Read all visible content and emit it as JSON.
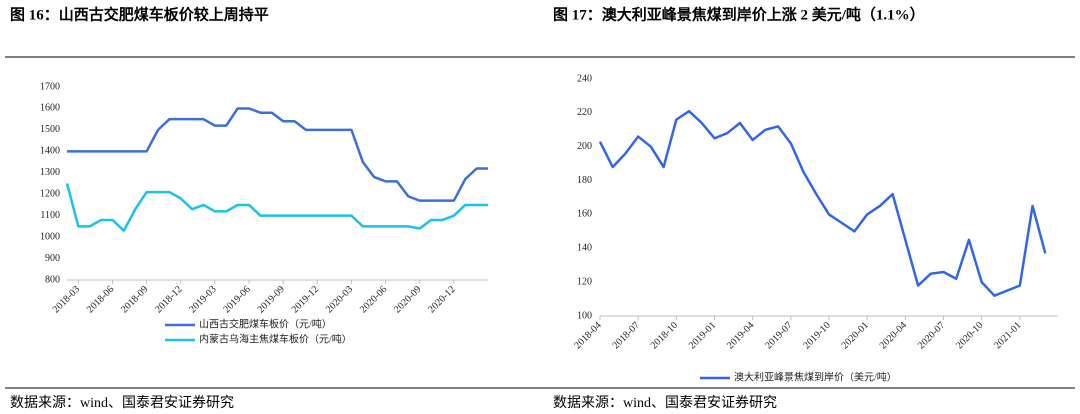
{
  "chart_data": [
    {
      "type": "line",
      "title": "图 16：山西古交肥煤车板价较上周持平",
      "source": "数据来源：wind、国泰君安证券研究",
      "x": [
        "2018-02",
        "2018-03",
        "2018-04",
        "2018-05",
        "2018-06",
        "2018-07",
        "2018-08",
        "2018-09",
        "2018-10",
        "2018-11",
        "2018-12",
        "2019-01",
        "2019-02",
        "2019-03",
        "2019-04",
        "2019-05",
        "2019-06",
        "2019-07",
        "2019-08",
        "2019-09",
        "2019-10",
        "2019-11",
        "2019-12",
        "2020-01",
        "2020-02",
        "2020-03",
        "2020-04",
        "2020-05",
        "2020-06",
        "2020-07",
        "2020-08",
        "2020-09",
        "2020-10",
        "2020-11",
        "2020-12",
        "2021-01",
        "2021-02",
        "2021-03"
      ],
      "xlim": [
        "2018-02",
        "2021-03"
      ],
      "xticks": [
        "2018-03",
        "2018-06",
        "2018-09",
        "2018-12",
        "2019-03",
        "2019-06",
        "2019-09",
        "2019-12",
        "2020-03",
        "2020-06",
        "2020-09",
        "2020-12"
      ],
      "ylim": [
        800,
        1700
      ],
      "yticks": [
        800,
        900,
        1000,
        1100,
        1200,
        1300,
        1400,
        1500,
        1600,
        1700
      ],
      "legend": "bottom",
      "series": [
        {
          "name": "山西古交肥煤车板价（元/吨）",
          "color": "#3b6fd9",
          "values": [
            1400,
            1400,
            1400,
            1400,
            1400,
            1400,
            1400,
            1400,
            1500,
            1550,
            1550,
            1550,
            1550,
            1520,
            1520,
            1600,
            1600,
            1580,
            1580,
            1540,
            1540,
            1500,
            1500,
            1500,
            1500,
            1500,
            1350,
            1280,
            1260,
            1260,
            1190,
            1170,
            1170,
            1170,
            1170,
            1270,
            1320,
            1320
          ]
        },
        {
          "name": "内蒙古乌海主焦煤车板价（元/吨）",
          "color": "#19c3e8",
          "values": [
            1250,
            1050,
            1050,
            1080,
            1080,
            1030,
            1130,
            1210,
            1210,
            1210,
            1180,
            1130,
            1150,
            1120,
            1120,
            1150,
            1150,
            1100,
            1100,
            1100,
            1100,
            1100,
            1100,
            1100,
            1100,
            1100,
            1050,
            1050,
            1050,
            1050,
            1050,
            1040,
            1080,
            1080,
            1100,
            1150,
            1150,
            1150
          ]
        }
      ]
    },
    {
      "type": "line",
      "title": "图 17：澳大利亚峰景焦煤到岸价上涨 2 美元/吨（1.1%）",
      "source": "数据来源：wind、国泰君安证券研究",
      "x": [
        "2018-04",
        "2018-05",
        "2018-06",
        "2018-07",
        "2018-08",
        "2018-09",
        "2018-10",
        "2018-11",
        "2018-12",
        "2019-01",
        "2019-02",
        "2019-03",
        "2019-04",
        "2019-05",
        "2019-06",
        "2019-07",
        "2019-08",
        "2019-09",
        "2019-10",
        "2019-11",
        "2019-12",
        "2020-01",
        "2020-02",
        "2020-03",
        "2020-04",
        "2020-05",
        "2020-06",
        "2020-07",
        "2020-08",
        "2020-09",
        "2020-10",
        "2020-11",
        "2020-12",
        "2021-01",
        "2021-02",
        "2021-03"
      ],
      "xlim": [
        "2018-04",
        "2021-04"
      ],
      "xticks": [
        "2018-04",
        "2018-07",
        "2018-10",
        "2019-01",
        "2019-04",
        "2019-07",
        "2019-10",
        "2020-01",
        "2020-04",
        "2020-07",
        "2020-10",
        "2021-01"
      ],
      "ylim": [
        100,
        240
      ],
      "yticks": [
        100,
        120,
        140,
        160,
        180,
        200,
        220,
        240
      ],
      "legend": "bottom",
      "series": [
        {
          "name": "澳大利亚峰景焦煤到岸价（美元/吨）",
          "color": "#3366e6",
          "values": [
            203,
            188,
            196,
            206,
            200,
            188,
            216,
            221,
            214,
            205,
            208,
            214,
            204,
            210,
            212,
            202,
            185,
            172,
            160,
            155,
            150,
            160,
            165,
            172,
            145,
            118,
            125,
            126,
            122,
            145,
            120,
            112,
            115,
            118,
            165,
            137
          ]
        }
      ]
    }
  ]
}
